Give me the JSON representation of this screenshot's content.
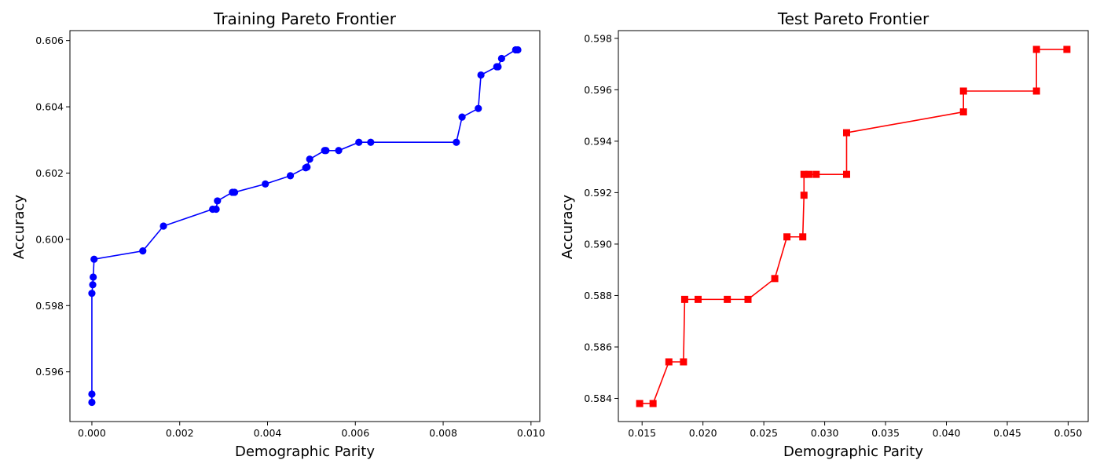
{
  "chart_data": [
    {
      "type": "line",
      "title": "Training Pareto Frontier",
      "xlabel": "Demographic Parity",
      "ylabel": "Accuracy",
      "xlim": [
        -0.0005,
        0.0102
      ],
      "ylim": [
        0.5945,
        0.6063
      ],
      "xticks": [
        "0.000",
        "0.002",
        "0.004",
        "0.006",
        "0.008",
        "0.010"
      ],
      "xtick_values": [
        0.0,
        0.002,
        0.004,
        0.006,
        0.008,
        0.01
      ],
      "yticks": [
        "0.596",
        "0.598",
        "0.600",
        "0.602",
        "0.604",
        "0.606"
      ],
      "ytick_values": [
        0.596,
        0.598,
        0.6,
        0.602,
        0.604,
        0.606
      ],
      "grid": false,
      "series": [
        {
          "color": "#0000ff",
          "marker": "circle",
          "x": [
            0.0,
            0.0,
            0.0,
            2e-05,
            3e-05,
            5e-05,
            0.00116,
            0.00163,
            0.00275,
            0.00283,
            0.00286,
            0.0032,
            0.00325,
            0.00395,
            0.00452,
            0.00487,
            0.0049,
            0.00496,
            0.0053,
            0.00533,
            0.00562,
            0.00608,
            0.00635,
            0.0083,
            0.00843,
            0.0088,
            0.00886,
            0.00922,
            0.00925,
            0.00933,
            0.00965,
            0.0097
          ],
          "y": [
            0.59508,
            0.59533,
            0.59837,
            0.59863,
            0.59886,
            0.5994,
            0.59965,
            0.6004,
            0.60091,
            0.60091,
            0.60116,
            0.60142,
            0.60142,
            0.60167,
            0.60192,
            0.60216,
            0.60218,
            0.60242,
            0.60268,
            0.60268,
            0.60268,
            0.60293,
            0.60293,
            0.60293,
            0.60369,
            0.60395,
            0.60496,
            0.60521,
            0.60521,
            0.60546,
            0.60572,
            0.60572
          ]
        }
      ]
    },
    {
      "type": "line",
      "title": "Test Pareto Frontier",
      "xlabel": "Demographic Parity",
      "ylabel": "Accuracy",
      "xlim": [
        0.01305,
        0.05165
      ],
      "ylim": [
        0.5831,
        0.5983
      ],
      "xticks": [
        "0.015",
        "0.020",
        "0.025",
        "0.030",
        "0.035",
        "0.040",
        "0.045",
        "0.050"
      ],
      "xtick_values": [
        0.015,
        0.02,
        0.025,
        0.03,
        0.035,
        0.04,
        0.045,
        0.05
      ],
      "yticks": [
        "0.584",
        "0.586",
        "0.588",
        "0.590",
        "0.592",
        "0.594",
        "0.596",
        "0.598"
      ],
      "ytick_values": [
        0.584,
        0.586,
        0.588,
        0.59,
        0.592,
        0.594,
        0.596,
        0.598
      ],
      "grid": false,
      "series": [
        {
          "color": "#ff0000",
          "marker": "square",
          "x": [
            0.0148,
            0.0159,
            0.0172,
            0.0184,
            0.0185,
            0.0196,
            0.022,
            0.0237,
            0.0259,
            0.0269,
            0.0282,
            0.0283,
            0.0283,
            0.0287,
            0.0293,
            0.0318,
            0.0318,
            0.0414,
            0.0414,
            0.0474,
            0.0474,
            0.0499
          ],
          "y": [
            0.5838,
            0.5838,
            0.58542,
            0.58542,
            0.58785,
            0.58785,
            0.58785,
            0.58785,
            0.58866,
            0.59028,
            0.59028,
            0.5919,
            0.59271,
            0.59271,
            0.59271,
            0.59271,
            0.59433,
            0.59514,
            0.59595,
            0.59595,
            0.59757,
            0.59757
          ]
        }
      ]
    }
  ]
}
